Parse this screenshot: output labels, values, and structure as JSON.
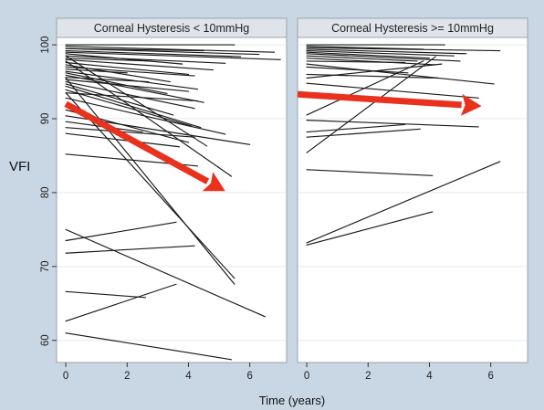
{
  "chart_data": {
    "type": "line",
    "ylabel": "VFI",
    "xlabel": "Time (years)",
    "ylim": [
      57,
      101
    ],
    "xlim": [
      -0.3,
      7.2
    ],
    "yticks": [
      60,
      70,
      80,
      90,
      100
    ],
    "xticks": [
      0,
      2,
      4,
      6
    ],
    "grid": true,
    "arrow_color": "#e8321e",
    "panels": [
      {
        "title": "Corneal Hysteresis < 10mmHg",
        "lines": [
          [
            0,
            100,
            5.5,
            100
          ],
          [
            0,
            99.8,
            6.8,
            99.0
          ],
          [
            0,
            99.5,
            4.5,
            99.2
          ],
          [
            0,
            99.5,
            6.3,
            98.7
          ],
          [
            0,
            99.2,
            5.7,
            98.4
          ],
          [
            0,
            99.0,
            7.0,
            98.0
          ],
          [
            0,
            98.8,
            3.8,
            97.4
          ],
          [
            0,
            98.5,
            5.2,
            97.5
          ],
          [
            0,
            98.2,
            2.8,
            97.8
          ],
          [
            0,
            98.0,
            4.8,
            96.6
          ],
          [
            0,
            97.6,
            4.0,
            96.0
          ],
          [
            0,
            97.3,
            3.4,
            95.0
          ],
          [
            0,
            97.0,
            4.2,
            95.8
          ],
          [
            0,
            96.7,
            2.0,
            96.2
          ],
          [
            0,
            96.4,
            4.3,
            94.0
          ],
          [
            0,
            96.2,
            3.3,
            93.4
          ],
          [
            0,
            95.9,
            4.5,
            92.2
          ],
          [
            0,
            95.6,
            2.7,
            95.0
          ],
          [
            0,
            95.3,
            4.0,
            93.7
          ],
          [
            0,
            95.0,
            4.2,
            91.4
          ],
          [
            0,
            94.7,
            3.5,
            90.5
          ],
          [
            0,
            94.4,
            4.4,
            88.8
          ],
          [
            0,
            93.9,
            4.1,
            89.0
          ],
          [
            0,
            93.5,
            4.3,
            92.4
          ],
          [
            0,
            92.8,
            5.2,
            87.9
          ],
          [
            0,
            91.2,
            4.0,
            86.8
          ],
          [
            0,
            90.4,
            6.0,
            86.5
          ],
          [
            0,
            89.6,
            2.5,
            88.2
          ],
          [
            0,
            88.8,
            4.2,
            87.5
          ],
          [
            0,
            88.0,
            3.7,
            86.2
          ],
          [
            0,
            98.5,
            4.6,
            86.3
          ],
          [
            0,
            97.8,
            5.4,
            82.2
          ],
          [
            0,
            95.5,
            5.5,
            67.6
          ],
          [
            0,
            93.5,
            5.5,
            68.4
          ],
          [
            0,
            85.2,
            4.3,
            83.6
          ],
          [
            0,
            75.0,
            6.5,
            63.2
          ],
          [
            0,
            73.5,
            3.6,
            76.0
          ],
          [
            0,
            71.8,
            4.2,
            72.8
          ],
          [
            0,
            66.6,
            2.6,
            65.8
          ],
          [
            0,
            62.6,
            3.6,
            67.6
          ],
          [
            0,
            61.0,
            5.4,
            57.4
          ]
        ],
        "arrow": [
          0,
          92,
          5.2,
          80.2
        ]
      },
      {
        "title": "Corneal Hysteresis >= 10mmHg",
        "lines": [
          [
            0,
            100,
            4.5,
            100
          ],
          [
            0,
            99.8,
            3.8,
            99.4
          ],
          [
            0,
            99.6,
            6.3,
            99.2
          ],
          [
            0,
            99.4,
            5.2,
            98.8
          ],
          [
            0,
            99.2,
            4.8,
            98.5
          ],
          [
            0,
            99.0,
            4.0,
            98.2
          ],
          [
            0,
            98.8,
            5.0,
            97.8
          ],
          [
            0,
            98.5,
            3.6,
            97.8
          ],
          [
            0,
            98.2,
            4.2,
            97.3
          ],
          [
            0,
            97.8,
            3.2,
            97.6
          ],
          [
            0,
            97.4,
            6.1,
            94.7
          ],
          [
            0,
            97.0,
            3.3,
            96.2
          ],
          [
            0,
            96.0,
            4.3,
            95.5
          ],
          [
            0,
            94.8,
            5.6,
            92.8
          ],
          [
            0,
            93.5,
            4.2,
            91.8
          ],
          [
            0,
            95.5,
            4.4,
            97.4
          ],
          [
            0,
            90.5,
            3.8,
            97.8
          ],
          [
            0,
            85.4,
            4.2,
            98.4
          ],
          [
            0,
            89.8,
            5.6,
            88.9
          ],
          [
            0,
            88.2,
            3.2,
            89.2
          ],
          [
            0,
            87.5,
            3.7,
            88.6
          ],
          [
            0,
            83.1,
            4.1,
            82.3
          ],
          [
            0,
            73.2,
            6.3,
            84.2
          ],
          [
            0,
            72.9,
            4.1,
            77.4
          ]
        ],
        "arrow": [
          -0.3,
          93.3,
          5.7,
          91.7
        ]
      }
    ]
  }
}
